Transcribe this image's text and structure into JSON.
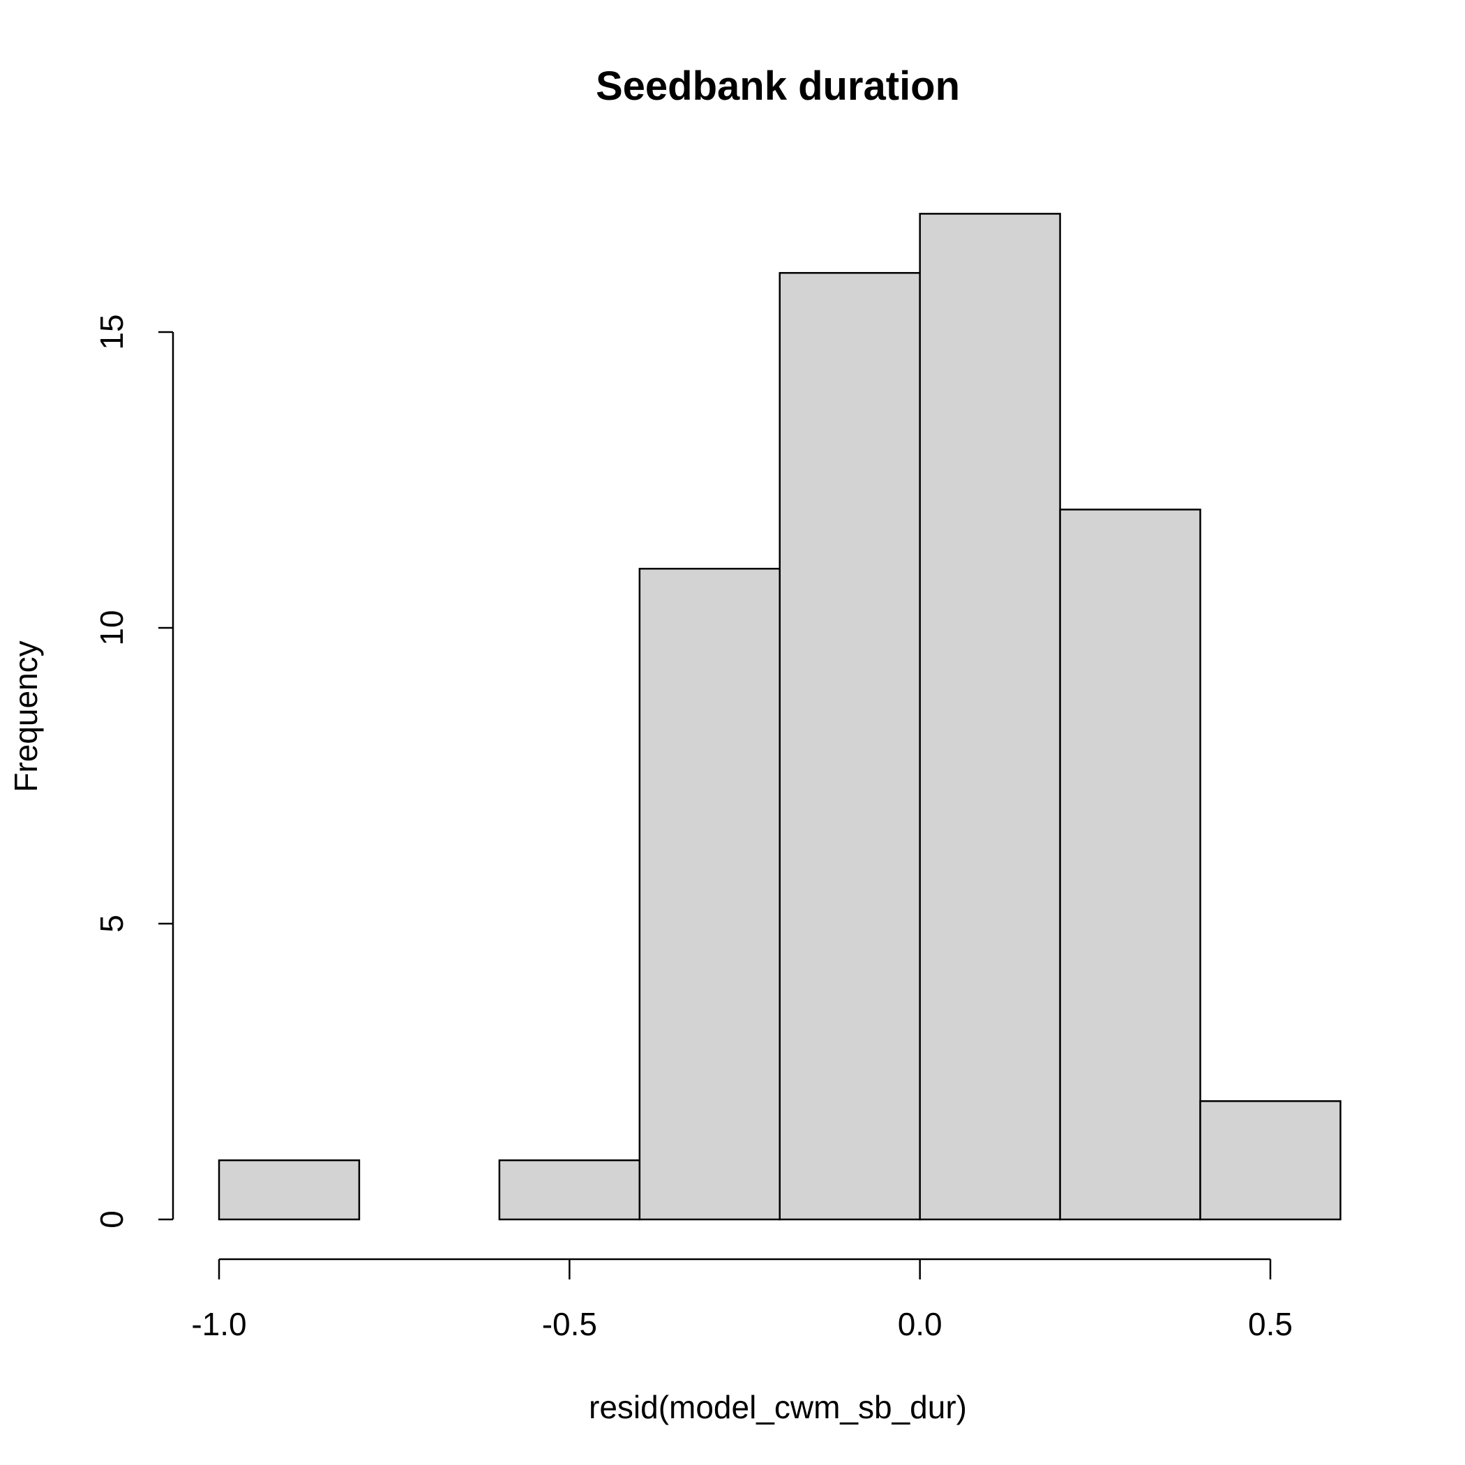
{
  "chart_data": {
    "type": "bar",
    "title": "Seedbank duration",
    "xlabel": "resid(model_cwm_sb_dur)",
    "ylabel": "Frequency",
    "bins": [
      {
        "start": -1.0,
        "end": -0.8,
        "count": 1
      },
      {
        "start": -0.8,
        "end": -0.6,
        "count": 0
      },
      {
        "start": -0.6,
        "end": -0.4,
        "count": 1
      },
      {
        "start": -0.4,
        "end": -0.2,
        "count": 11
      },
      {
        "start": -0.2,
        "end": 0.0,
        "count": 16
      },
      {
        "start": 0.0,
        "end": 0.2,
        "count": 17
      },
      {
        "start": 0.2,
        "end": 0.4,
        "count": 12
      },
      {
        "start": 0.4,
        "end": 0.6,
        "count": 2
      }
    ],
    "x_ticks": [
      {
        "value": -1.0,
        "label": "-1.0"
      },
      {
        "value": -0.5,
        "label": "-0.5"
      },
      {
        "value": 0.0,
        "label": "0.0"
      },
      {
        "value": 0.5,
        "label": "0.5"
      }
    ],
    "y_ticks": [
      {
        "value": 0,
        "label": "0"
      },
      {
        "value": 5,
        "label": "5"
      },
      {
        "value": 10,
        "label": "10"
      },
      {
        "value": 15,
        "label": "15"
      }
    ],
    "xlim": [
      -1.0,
      0.6
    ],
    "ylim": [
      0,
      17
    ],
    "grid": false,
    "bar_fill": "#d3d3d3",
    "bar_stroke": "#000000"
  }
}
